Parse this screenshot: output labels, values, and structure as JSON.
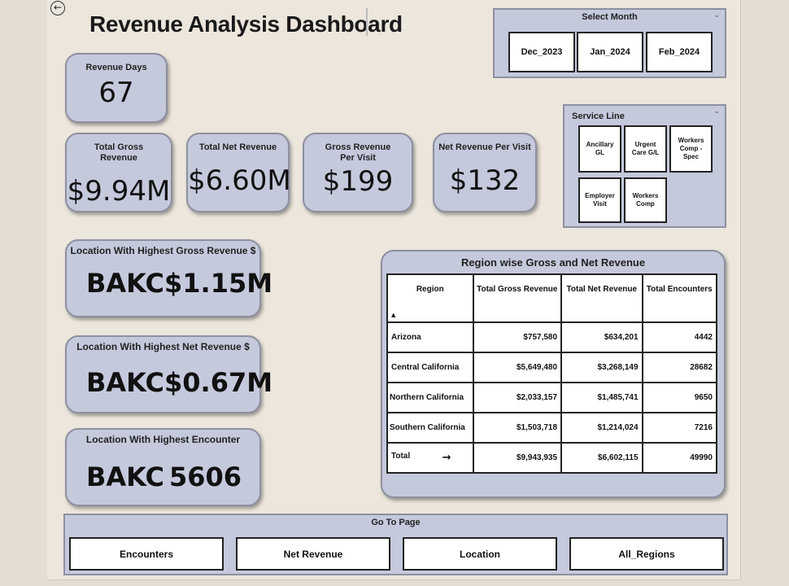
{
  "title": "Revenue Analysis Dashboard",
  "kpis": {
    "revenue_days": {
      "label": "Revenue Days",
      "value": "67"
    },
    "total_gross": {
      "label": "Total Gross Revenue",
      "value": "$9.94M"
    },
    "total_net": {
      "label": "Total Net Revenue",
      "value": "$6.60M"
    },
    "gross_per_visit": {
      "label": "Gross Revenue Per Visit",
      "value": "$199"
    },
    "net_per_visit": {
      "label": "Net Revenue Per Visit",
      "value": "$132"
    }
  },
  "locations": {
    "highest_gross": {
      "label": "Location With Highest Gross Revenue $",
      "location": "BAKC",
      "value": "$1.15M"
    },
    "highest_net": {
      "label": "Location With Highest Net Revenue $",
      "location": "BAKC",
      "value": "$0.67M"
    },
    "highest_encounter": {
      "label": "Location With Highest Encounter",
      "location": "BAKC",
      "value": "5606"
    }
  },
  "month_slicer": {
    "title": "Select Month",
    "options": [
      "Dec_2023",
      "Jan_2024",
      "Feb_2024"
    ]
  },
  "service_slicer": {
    "title": "Service Line",
    "options": [
      "Ancillary GL",
      "Urgent Care G/L",
      "Workers Comp - Spec",
      "Employer Visit",
      "Workers Comp"
    ]
  },
  "region_table": {
    "title": "Region wise Gross and Net Revenue",
    "columns": [
      "Region",
      "Total Gross Revenue",
      "Total Net Revenue",
      "Total Encounters"
    ],
    "rows": [
      [
        "Arizona",
        "$757,580",
        "$634,201",
        "4442"
      ],
      [
        "Central California",
        "$5,649,480",
        "$3,268,149",
        "28682"
      ],
      [
        "Northern California",
        "$2,033,157",
        "$1,485,741",
        "9650"
      ],
      [
        "Southern California",
        "$1,503,718",
        "$1,214,024",
        "7216"
      ],
      [
        "Total",
        "$9,943,935",
        "$6,602,115",
        "49990"
      ]
    ]
  },
  "goto": {
    "title": "Go To Page",
    "buttons": [
      "Encounters",
      "Net Revenue",
      "Location",
      "All_Regions"
    ]
  },
  "colors": {
    "card": "#c5c9dc",
    "background": "#ece6dc"
  },
  "icons": {
    "back": "back-arrow-icon",
    "sort": "sort-ascending-icon",
    "total_row": "arrow-right-icon"
  }
}
